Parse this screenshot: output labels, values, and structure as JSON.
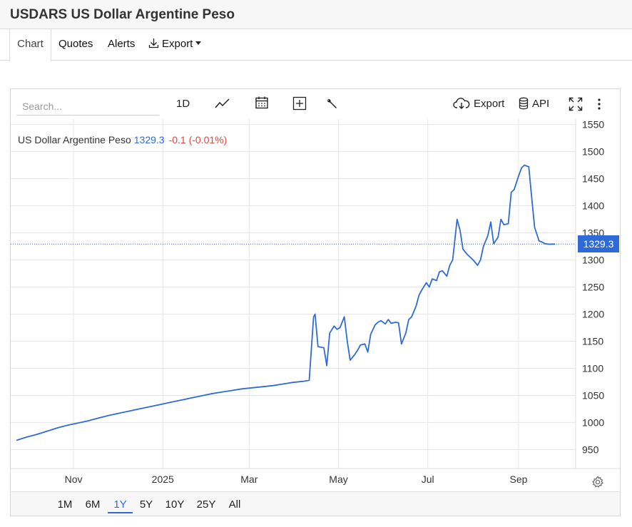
{
  "page": {
    "title": "USDARS US Dollar Argentine Peso"
  },
  "tabs": [
    {
      "label": "Chart",
      "active": true
    },
    {
      "label": "Quotes"
    },
    {
      "label": "Alerts"
    },
    {
      "label": "Export"
    }
  ],
  "toolbar": {
    "search_placeholder": "Search...",
    "interval": "1D",
    "export_label": "Export",
    "api_label": "API",
    "icons": [
      "line-chart-icon",
      "calendar-icon",
      "add-indicator-icon",
      "wrench-icon",
      "cloud-download-icon",
      "database-icon",
      "fullscreen-icon",
      "more-icon"
    ]
  },
  "legend": {
    "name": "US Dollar Argentine Peso",
    "price": "1329.3",
    "change": "-0.1 (-0.01%)"
  },
  "price_tag": "1329.3",
  "range_buttons": [
    "1M",
    "6M",
    "1Y",
    "5Y",
    "10Y",
    "25Y",
    "All"
  ],
  "active_range": "1Y",
  "colors": {
    "line": "#2f6bd8",
    "down": "#e0463d",
    "grid": "#e6e6e6"
  },
  "chart_data": {
    "type": "line",
    "title": "",
    "series": [
      {
        "name": "US Dollar Argentine Peso",
        "x": [
          "2024-09-23",
          "2024-09-30",
          "2024-10-07",
          "2024-10-14",
          "2024-10-21",
          "2024-10-28",
          "2024-11-04",
          "2024-11-11",
          "2024-11-18",
          "2024-11-25",
          "2024-12-02",
          "2024-12-09",
          "2024-12-16",
          "2024-12-23",
          "2024-12-30",
          "2025-01-06",
          "2025-01-13",
          "2025-01-20",
          "2025-01-27",
          "2025-02-03",
          "2025-02-10",
          "2025-02-17",
          "2025-02-24",
          "2025-03-03",
          "2025-03-10",
          "2025-03-17",
          "2025-03-24",
          "2025-03-31",
          "2025-04-07",
          "2025-04-11",
          "2025-04-14",
          "2025-04-15",
          "2025-04-17",
          "2025-04-21",
          "2025-04-23",
          "2025-04-25",
          "2025-04-28",
          "2025-04-30",
          "2025-05-02",
          "2025-05-05",
          "2025-05-07",
          "2025-05-09",
          "2025-05-12",
          "2025-05-14",
          "2025-05-16",
          "2025-05-19",
          "2025-05-21",
          "2025-05-23",
          "2025-05-26",
          "2025-05-28",
          "2025-05-30",
          "2025-06-02",
          "2025-06-04",
          "2025-06-06",
          "2025-06-09",
          "2025-06-11",
          "2025-06-13",
          "2025-06-16",
          "2025-06-18",
          "2025-06-20",
          "2025-06-23",
          "2025-06-25",
          "2025-06-27",
          "2025-06-30",
          "2025-07-02",
          "2025-07-04",
          "2025-07-07",
          "2025-07-09",
          "2025-07-11",
          "2025-07-14",
          "2025-07-16",
          "2025-07-18",
          "2025-07-21",
          "2025-07-23",
          "2025-07-25",
          "2025-07-28",
          "2025-07-30",
          "2025-08-01",
          "2025-08-04",
          "2025-08-06",
          "2025-08-08",
          "2025-08-11",
          "2025-08-13",
          "2025-08-15",
          "2025-08-18",
          "2025-08-20",
          "2025-08-22",
          "2025-08-25",
          "2025-08-27",
          "2025-08-29",
          "2025-09-01",
          "2025-09-03",
          "2025-09-05",
          "2025-09-08",
          "2025-09-10",
          "2025-09-12",
          "2025-09-15",
          "2025-09-17",
          "2025-09-19",
          "2025-09-22",
          "2025-09-24",
          "2025-09-26"
        ],
        "y": [
          967,
          973,
          978,
          984,
          990,
          995,
          999,
          1003,
          1008,
          1013,
          1017,
          1021,
          1025,
          1029,
          1033,
          1037,
          1041,
          1045,
          1049,
          1053,
          1056,
          1059,
          1062,
          1064,
          1066,
          1068,
          1071,
          1074,
          1076,
          1078,
          1195,
          1200,
          1140,
          1138,
          1105,
          1165,
          1178,
          1172,
          1175,
          1195,
          1150,
          1115,
          1125,
          1133,
          1143,
          1145,
          1130,
          1163,
          1180,
          1185,
          1188,
          1182,
          1190,
          1183,
          1185,
          1184,
          1145,
          1165,
          1190,
          1195,
          1215,
          1235,
          1245,
          1258,
          1250,
          1265,
          1262,
          1278,
          1280,
          1270,
          1290,
          1300,
          1375,
          1355,
          1320,
          1310,
          1305,
          1300,
          1290,
          1300,
          1325,
          1345,
          1370,
          1330,
          1342,
          1375,
          1365,
          1367,
          1425,
          1430,
          1455,
          1470,
          1475,
          1472,
          1415,
          1360,
          1335,
          1333,
          1330,
          1329,
          1329.3,
          1329.3
        ]
      }
    ],
    "ylim": [
      915,
      1560
    ],
    "yticks": [
      950,
      1000,
      1050,
      1100,
      1150,
      1200,
      1250,
      1300,
      1350,
      1400,
      1450,
      1500,
      1550
    ],
    "xticks": [
      {
        "label": "Nov",
        "x": "2024-11-01"
      },
      {
        "label": "2025",
        "x": "2025-01-01"
      },
      {
        "label": "Mar",
        "x": "2025-03-01"
      },
      {
        "label": "May",
        "x": "2025-05-01"
      },
      {
        "label": "Jul",
        "x": "2025-07-01"
      },
      {
        "label": "Sep",
        "x": "2025-09-01"
      }
    ],
    "xlim": [
      "2024-09-23",
      "2025-10-10"
    ],
    "last_value": 1329.3,
    "grid": true
  }
}
